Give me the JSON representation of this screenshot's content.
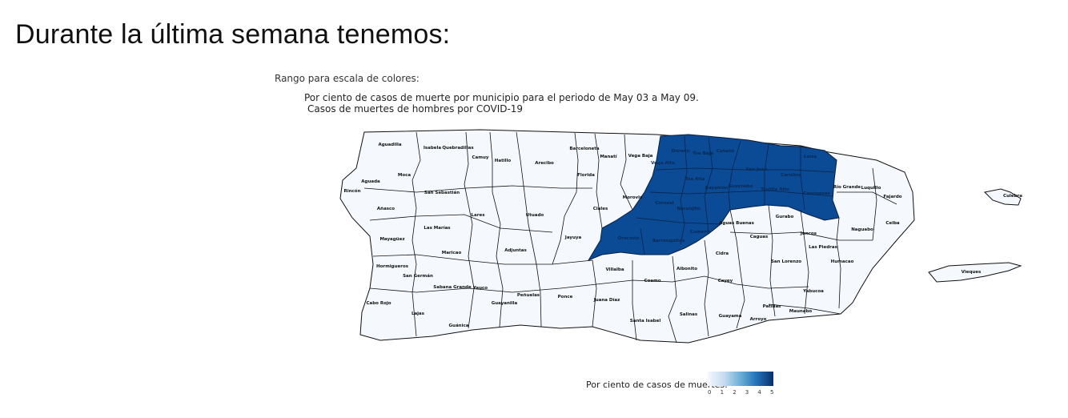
{
  "heading": "Durante la última semana tenemos:",
  "range_label": "Rango para escala de colores:",
  "map": {
    "title": "Por ciento de casos de muerte por municipio para el periodo de May 03 a May 09.",
    "subtitle": "Casos de muertes de hombres por COVID-19",
    "colors": {
      "low": "#f5f9fe",
      "high": "#0b4a94",
      "border": "#111111"
    },
    "municipalities": [
      {
        "name": "Aguadilla",
        "value": 0
      },
      {
        "name": "Isabela",
        "value": 0
      },
      {
        "name": "Quebradillas",
        "value": 0
      },
      {
        "name": "Camuy",
        "value": 0
      },
      {
        "name": "Hatillo",
        "value": 0
      },
      {
        "name": "Arecibo",
        "value": 0
      },
      {
        "name": "Barceloneta",
        "value": 0
      },
      {
        "name": "Manatí",
        "value": 0
      },
      {
        "name": "Vega Baja",
        "value": 0
      },
      {
        "name": "Florida",
        "value": 0
      },
      {
        "name": "Dorado",
        "value": 5
      },
      {
        "name": "Toa Baja",
        "value": 5
      },
      {
        "name": "Cataño",
        "value": 5
      },
      {
        "name": "Vega Alta",
        "value": 5
      },
      {
        "name": "San Juan",
        "value": 5
      },
      {
        "name": "Carolina",
        "value": 5
      },
      {
        "name": "Loíza",
        "value": 5
      },
      {
        "name": "Toa Alta",
        "value": 5
      },
      {
        "name": "Bayamón",
        "value": 5
      },
      {
        "name": "Guaynabo",
        "value": 5
      },
      {
        "name": "Trujillo Alto",
        "value": 5
      },
      {
        "name": "Canóvanas",
        "value": 5
      },
      {
        "name": "Corozal",
        "value": 5
      },
      {
        "name": "Naranjito",
        "value": 5
      },
      {
        "name": "Barranquitas",
        "value": 5
      },
      {
        "name": "Orocovis",
        "value": 5
      },
      {
        "name": "Comerío",
        "value": 5
      },
      {
        "name": "Aguada",
        "value": 0
      },
      {
        "name": "Moca",
        "value": 0
      },
      {
        "name": "Rincón",
        "value": 0
      },
      {
        "name": "Añasco",
        "value": 0
      },
      {
        "name": "San Sebastián",
        "value": 0
      },
      {
        "name": "Lares",
        "value": 0
      },
      {
        "name": "Utuado",
        "value": 0
      },
      {
        "name": "Ciales",
        "value": 0
      },
      {
        "name": "Morovis",
        "value": 0
      },
      {
        "name": "Las Marías",
        "value": 0
      },
      {
        "name": "Mayagüez",
        "value": 0
      },
      {
        "name": "Maricao",
        "value": 0
      },
      {
        "name": "Adjuntas",
        "value": 0
      },
      {
        "name": "Jayuya",
        "value": 0
      },
      {
        "name": "Hormigueros",
        "value": 0
      },
      {
        "name": "San Germán",
        "value": 0
      },
      {
        "name": "Sabana Grande",
        "value": 0
      },
      {
        "name": "Yauco",
        "value": 0
      },
      {
        "name": "Guayanilla",
        "value": 0
      },
      {
        "name": "Peñuelas",
        "value": 0
      },
      {
        "name": "Ponce",
        "value": 0
      },
      {
        "name": "Juana Díaz",
        "value": 0
      },
      {
        "name": "Villalba",
        "value": 0
      },
      {
        "name": "Coamo",
        "value": 0
      },
      {
        "name": "Aibonito",
        "value": 0
      },
      {
        "name": "Cabo Rojo",
        "value": 0
      },
      {
        "name": "Lajas",
        "value": 0
      },
      {
        "name": "Guánica",
        "value": 0
      },
      {
        "name": "Santa Isabel",
        "value": 0
      },
      {
        "name": "Salinas",
        "value": 0
      },
      {
        "name": "Guayama",
        "value": 0
      },
      {
        "name": "Arroyo",
        "value": 0
      },
      {
        "name": "Patillas",
        "value": 0
      },
      {
        "name": "Maunabo",
        "value": 0
      },
      {
        "name": "Cayey",
        "value": 0
      },
      {
        "name": "Cidra",
        "value": 0
      },
      {
        "name": "Aguas Buenas",
        "value": 0
      },
      {
        "name": "Caguas",
        "value": 0
      },
      {
        "name": "Gurabo",
        "value": 0
      },
      {
        "name": "Juncos",
        "value": 0
      },
      {
        "name": "San Lorenzo",
        "value": 0
      },
      {
        "name": "Las Piedras",
        "value": 0
      },
      {
        "name": "Yabucoa",
        "value": 0
      },
      {
        "name": "Humacao",
        "value": 0
      },
      {
        "name": "Naguabo",
        "value": 0
      },
      {
        "name": "Ceiba",
        "value": 0
      },
      {
        "name": "Fajardo",
        "value": 0
      },
      {
        "name": "Luquillo",
        "value": 0
      },
      {
        "name": "Río Grande",
        "value": 0
      },
      {
        "name": "Culebra",
        "value": 0
      },
      {
        "name": "Vieques",
        "value": 0
      }
    ]
  },
  "legend": {
    "title": "Por ciento de casos de muertes:",
    "ticks": [
      "0",
      "1",
      "2",
      "3",
      "4",
      "5"
    ]
  }
}
